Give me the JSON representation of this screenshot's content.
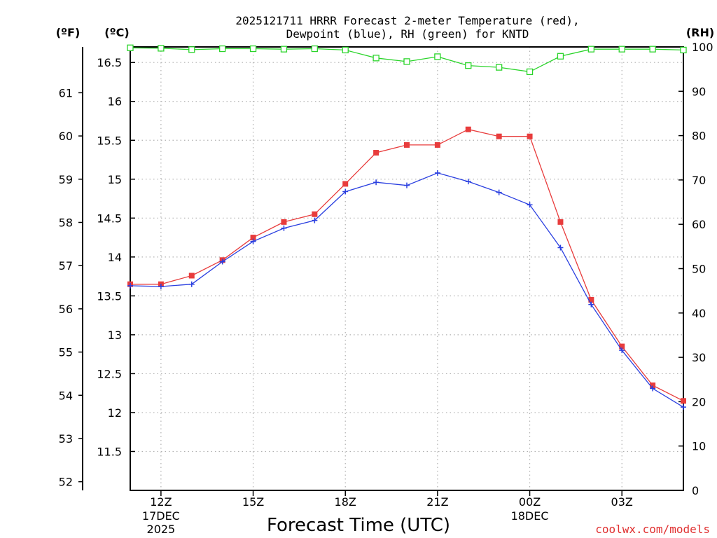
{
  "chart_data": {
    "type": "line",
    "title_line1": "2025121711 HRRR Forecast 2-meter Temperature (red),",
    "title_line2": "Dewpoint (blue), RH (green) for KNTD",
    "xlabel": "Forecast Time (UTC)",
    "watermark": "coolwx.com/models",
    "units": {
      "f": "(ºF)",
      "c": "(ºC)",
      "rh": "(RH)"
    },
    "x": [
      11,
      12,
      13,
      14,
      15,
      16,
      17,
      18,
      19,
      20,
      21,
      22,
      23,
      24,
      25,
      26,
      27,
      28,
      29
    ],
    "xlim": [
      11,
      29
    ],
    "ylim_c": [
      11.0,
      16.7
    ],
    "ylim_rh": [
      0,
      100
    ],
    "x_ticks": [
      {
        "x": 12,
        "label": "12Z",
        "sub1": "17DEC",
        "sub2": "2025"
      },
      {
        "x": 15,
        "label": "15Z",
        "sub1": "",
        "sub2": ""
      },
      {
        "x": 18,
        "label": "18Z",
        "sub1": "",
        "sub2": ""
      },
      {
        "x": 21,
        "label": "21Z",
        "sub1": "",
        "sub2": ""
      },
      {
        "x": 24,
        "label": "00Z",
        "sub1": "18DEC",
        "sub2": ""
      },
      {
        "x": 27,
        "label": "03Z",
        "sub1": "",
        "sub2": ""
      }
    ],
    "c_ticks": [
      "11.5",
      "12",
      "12.5",
      "13",
      "13.5",
      "14",
      "14.5",
      "15",
      "15.5",
      "16",
      "16.5"
    ],
    "c_tick_values": [
      11.5,
      12,
      12.5,
      13,
      13.5,
      14,
      14.5,
      15,
      15.5,
      16,
      16.5
    ],
    "f_ticks": [
      "52",
      "53",
      "54",
      "55",
      "56",
      "57",
      "58",
      "59",
      "60",
      "61"
    ],
    "f_tick_values": [
      52,
      53,
      54,
      55,
      56,
      57,
      58,
      59,
      60,
      61
    ],
    "rh_ticks": [
      "0",
      "10",
      "20",
      "30",
      "40",
      "50",
      "60",
      "70",
      "80",
      "90",
      "100"
    ],
    "rh_tick_values": [
      0,
      10,
      20,
      30,
      40,
      50,
      60,
      70,
      80,
      90,
      100
    ],
    "series": [
      {
        "name": "Temperature",
        "color": "#e83c3c",
        "marker": "square",
        "values": [
          13.65,
          13.65,
          13.76,
          13.96,
          14.25,
          14.45,
          14.55,
          14.94,
          15.34,
          15.44,
          15.44,
          15.64,
          15.55,
          15.55,
          14.45,
          13.45,
          12.85,
          12.35,
          12.15
        ]
      },
      {
        "name": "Dewpoint",
        "color": "#2a3fe0",
        "marker": "plus",
        "values": [
          13.63,
          13.62,
          13.65,
          13.94,
          14.2,
          14.37,
          14.47,
          14.84,
          14.96,
          14.92,
          15.08,
          14.97,
          14.83,
          14.67,
          14.12,
          13.39,
          12.8,
          12.31,
          12.07
        ]
      },
      {
        "name": "RH",
        "color": "#2ad42a",
        "marker": "open-square",
        "values": [
          99.8,
          99.7,
          99.4,
          99.6,
          99.6,
          99.5,
          99.6,
          99.3,
          97.5,
          96.7,
          97.8,
          95.8,
          95.4,
          94.4,
          97.9,
          99.5,
          99.5,
          99.5,
          99.3
        ]
      }
    ]
  }
}
